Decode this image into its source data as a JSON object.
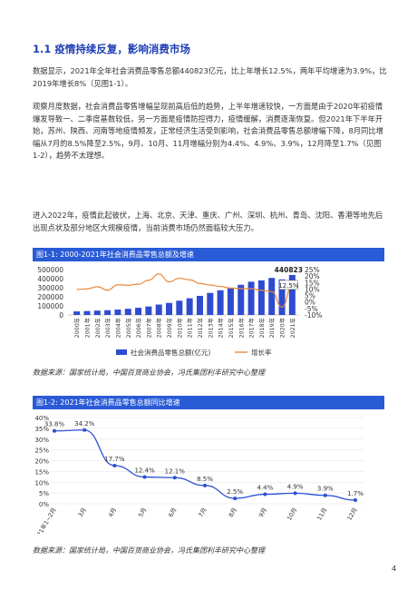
{
  "section_title": "1.1 疫情持续反复，影响消费市场",
  "paragraphs": [
    "数据显示，2021年全年社会消费品零售总额440823亿元，比上年增长12.5%，两年平均增速为3.9%，比2019年增长8%（见图1-1）。",
    "观察月度数据，社会消费品零售增幅呈现前高后低的趋势，上半年增速较快，一方面是由于2020年初疫情爆发导致一、二季度基数较低，另一方面是疫情防控得力，疫情缓解，消费逐渐恢复。但2021年下半年开始，苏州、陕西、河南等地疫情频发，正常经济生活受到影响，社会消费品零售总额增幅下降，8月同比增幅从7月的8.5%降至2.5%，9月、10月、11月增幅分别为4.4%、4.9%、3.9%，12月降至1.7%（见图1-2），趋势不太理想。",
    "进入2022年，疫情此起彼伏，上海、北京、天津、重庆、广州、深圳、杭州、青岛、沈阳、香港等地先后出现点状及部分地区大规模疫情，当前消费市场仍然面临较大压力。"
  ],
  "figure1": {
    "header": "图1-1: 2000-2021年社会消费品零售总额及增速",
    "source": "数据来源：国家统计局，中国百货商业协会，冯氏集团利丰研究中心整理"
  },
  "figure2": {
    "header": "图1-2: 2021年社会消费品零售总额同比增速",
    "source": "数据来源：国家统计局，中国百货商业协会，冯氏集团利丰研究中心整理"
  },
  "page_number": "4",
  "colors": {
    "accent": "#2a5bd7",
    "bar": "#2f4bd0",
    "line1": "#e9883a",
    "line2": "#2a4fd6"
  },
  "chart_data": [
    {
      "type": "bar",
      "title": "图1-1: 2000-2021年社会消费品零售总额及增速",
      "categories": [
        "2000年",
        "2001年",
        "2002年",
        "2003年",
        "2004年",
        "2005年",
        "2006年",
        "2007年",
        "2008年",
        "2009年",
        "2010年",
        "2011年",
        "2012年",
        "2013年",
        "2014年",
        "2015年",
        "2016年",
        "2017年",
        "2018年",
        "2019年",
        "2020年",
        "2021年"
      ],
      "y_ticks": [
        "500000",
        "400000",
        "300000",
        "200000",
        "100000",
        "0"
      ],
      "y2_ticks": [
        "25%",
        "20%",
        "15%",
        "10%",
        "5%",
        "0%",
        "-5%",
        "-10%"
      ],
      "ylim": [
        0,
        500000
      ],
      "y2lim": [
        -10,
        25
      ],
      "series": [
        {
          "name": "社会消费品零售总额(亿元)",
          "type": "bar",
          "values": [
            39106,
            43055,
            48136,
            52516,
            59501,
            68353,
            79145,
            93572,
            114830,
            132678,
            156998,
            183919,
            210307,
            242843,
            271896,
            300931,
            332316,
            366262,
            380987,
            408017,
            391981,
            440823
          ]
        },
        {
          "name": "增长率",
          "type": "line",
          "values": [
            9.7,
            10.1,
            11.8,
            9.1,
            13.3,
            12.9,
            13.7,
            16.8,
            21.6,
            15.5,
            18.3,
            17.1,
            14.3,
            13.1,
            12.0,
            10.7,
            10.4,
            10.2,
            9.0,
            8.0,
            -3.9,
            12.5
          ]
        }
      ],
      "data_labels": {
        "value": "440823",
        "rate": "12.5%"
      },
      "legend": "bottom",
      "grid": false
    },
    {
      "type": "line",
      "title": "图1-2: 2021年社会消费品零售总额同比增速",
      "categories": [
        "2021年1~2月",
        "3月",
        "4月",
        "5月",
        "6月",
        "7月",
        "8月",
        "9月",
        "10月",
        "11月",
        "12月"
      ],
      "values": [
        33.8,
        34.2,
        17.7,
        12.4,
        12.1,
        8.5,
        2.5,
        4.4,
        4.9,
        3.9,
        1.7
      ],
      "value_labels": [
        "33.8%",
        "34.2%",
        "17.7%",
        "12.4%",
        "12.1%",
        "8.5%",
        "2.5%",
        "4.4%",
        "4.9%",
        "3.9%",
        "1.7%"
      ],
      "y_ticks": [
        "40%",
        "35%",
        "30%",
        "25%",
        "20%",
        "15%",
        "10%",
        "5%",
        "0%"
      ],
      "ylim": [
        0,
        40
      ],
      "grid": true
    }
  ]
}
